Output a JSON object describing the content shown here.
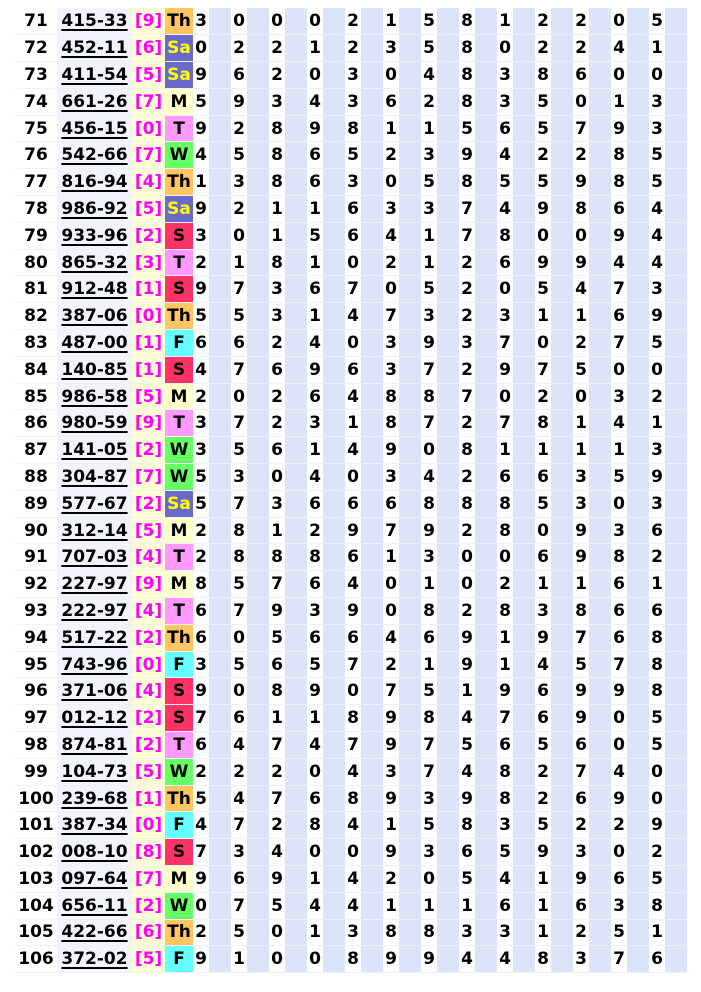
{
  "day_colors": {
    "Th": {
      "bg": "#ffc561",
      "fg": "#000000"
    },
    "Sa": {
      "bg": "#6a6ac8",
      "fg": "#ffff00"
    },
    "M": {
      "bg": "#ffffcc",
      "fg": "#000000"
    },
    "T": {
      "bg": "#ff99ff",
      "fg": "#000000"
    },
    "W": {
      "bg": "#66ff66",
      "fg": "#000000"
    },
    "S": {
      "bg": "#ff3366",
      "fg": "#000000"
    },
    "F": {
      "bg": "#66ffff",
      "fg": "#000000"
    }
  },
  "rows": [
    {
      "n": "71",
      "code": "415-33",
      "br": "[9]",
      "day": "Th",
      "d": "3000215812205"
    },
    {
      "n": "72",
      "code": "452-11",
      "br": "[6]",
      "day": "Sa",
      "d": "0221235802241"
    },
    {
      "n": "73",
      "code": "411-54",
      "br": "[5]",
      "day": "Sa",
      "d": "9620304838600"
    },
    {
      "n": "74",
      "code": "661-26",
      "br": "[7]",
      "day": "M",
      "d": "5934362835013"
    },
    {
      "n": "75",
      "code": "456-15",
      "br": "[0]",
      "day": "T",
      "d": "9289811565793"
    },
    {
      "n": "76",
      "code": "542-66",
      "br": "[7]",
      "day": "W",
      "d": "4586523942285"
    },
    {
      "n": "77",
      "code": "816-94",
      "br": "[4]",
      "day": "Th",
      "d": "1386305855985"
    },
    {
      "n": "78",
      "code": "986-92",
      "br": "[5]",
      "day": "Sa",
      "d": "9211633749864"
    },
    {
      "n": "79",
      "code": "933-96",
      "br": "[2]",
      "day": "S",
      "d": "3015641780094"
    },
    {
      "n": "80",
      "code": "865-32",
      "br": "[3]",
      "day": "T",
      "d": "2181021269944"
    },
    {
      "n": "81",
      "code": "912-48",
      "br": "[1]",
      "day": "S",
      "d": "9736705205473"
    },
    {
      "n": "82",
      "code": "387-06",
      "br": "[0]",
      "day": "Th",
      "d": "5531473231169"
    },
    {
      "n": "83",
      "code": "487-00",
      "br": "[1]",
      "day": "F",
      "d": "6624039370275"
    },
    {
      "n": "84",
      "code": "140-85",
      "br": "[1]",
      "day": "S",
      "d": "4769637297500"
    },
    {
      "n": "85",
      "code": "986-58",
      "br": "[5]",
      "day": "M",
      "d": "2026488702032"
    },
    {
      "n": "86",
      "code": "980-59",
      "br": "[9]",
      "day": "T",
      "d": "3723187278141"
    },
    {
      "n": "87",
      "code": "141-05",
      "br": "[2]",
      "day": "W",
      "d": "3561490811113"
    },
    {
      "n": "88",
      "code": "304-87",
      "br": "[7]",
      "day": "W",
      "d": "5304034266359"
    },
    {
      "n": "89",
      "code": "577-67",
      "br": "[2]",
      "day": "Sa",
      "d": "5736668885303"
    },
    {
      "n": "90",
      "code": "312-14",
      "br": "[5]",
      "day": "M",
      "d": "2812979280936"
    },
    {
      "n": "91",
      "code": "707-03",
      "br": "[4]",
      "day": "T",
      "d": "2888613006982"
    },
    {
      "n": "92",
      "code": "227-97",
      "br": "[9]",
      "day": "M",
      "d": "8576401021161"
    },
    {
      "n": "93",
      "code": "222-97",
      "br": "[4]",
      "day": "T",
      "d": "6793908283866"
    },
    {
      "n": "94",
      "code": "517-22",
      "br": "[2]",
      "day": "Th",
      "d": "6056646919768"
    },
    {
      "n": "95",
      "code": "743-96",
      "br": "[0]",
      "day": "F",
      "d": "3565721914578"
    },
    {
      "n": "96",
      "code": "371-06",
      "br": "[4]",
      "day": "S",
      "d": "9089075196998"
    },
    {
      "n": "97",
      "code": "012-12",
      "br": "[2]",
      "day": "S",
      "d": "7611898476905"
    },
    {
      "n": "98",
      "code": "874-81",
      "br": "[2]",
      "day": "T",
      "d": "6474797565605"
    },
    {
      "n": "99",
      "code": "104-73",
      "br": "[5]",
      "day": "W",
      "d": "2220437482740"
    },
    {
      "n": "100",
      "code": "239-68",
      "br": "[1]",
      "day": "Th",
      "d": "5476893982690"
    },
    {
      "n": "101",
      "code": "387-34",
      "br": "[0]",
      "day": "F",
      "d": "4728415835229"
    },
    {
      "n": "102",
      "code": "008-10",
      "br": "[8]",
      "day": "S",
      "d": "7340093659302"
    },
    {
      "n": "103",
      "code": "097-64",
      "br": "[7]",
      "day": "M",
      "d": "9691420541965"
    },
    {
      "n": "104",
      "code": "656-11",
      "br": "[2]",
      "day": "W",
      "d": "0754411161638"
    },
    {
      "n": "105",
      "code": "422-66",
      "br": "[6]",
      "day": "Th",
      "d": "2501388331251"
    },
    {
      "n": "106",
      "code": "372-02",
      "br": "[5]",
      "day": "F",
      "d": "9100899448376"
    }
  ]
}
